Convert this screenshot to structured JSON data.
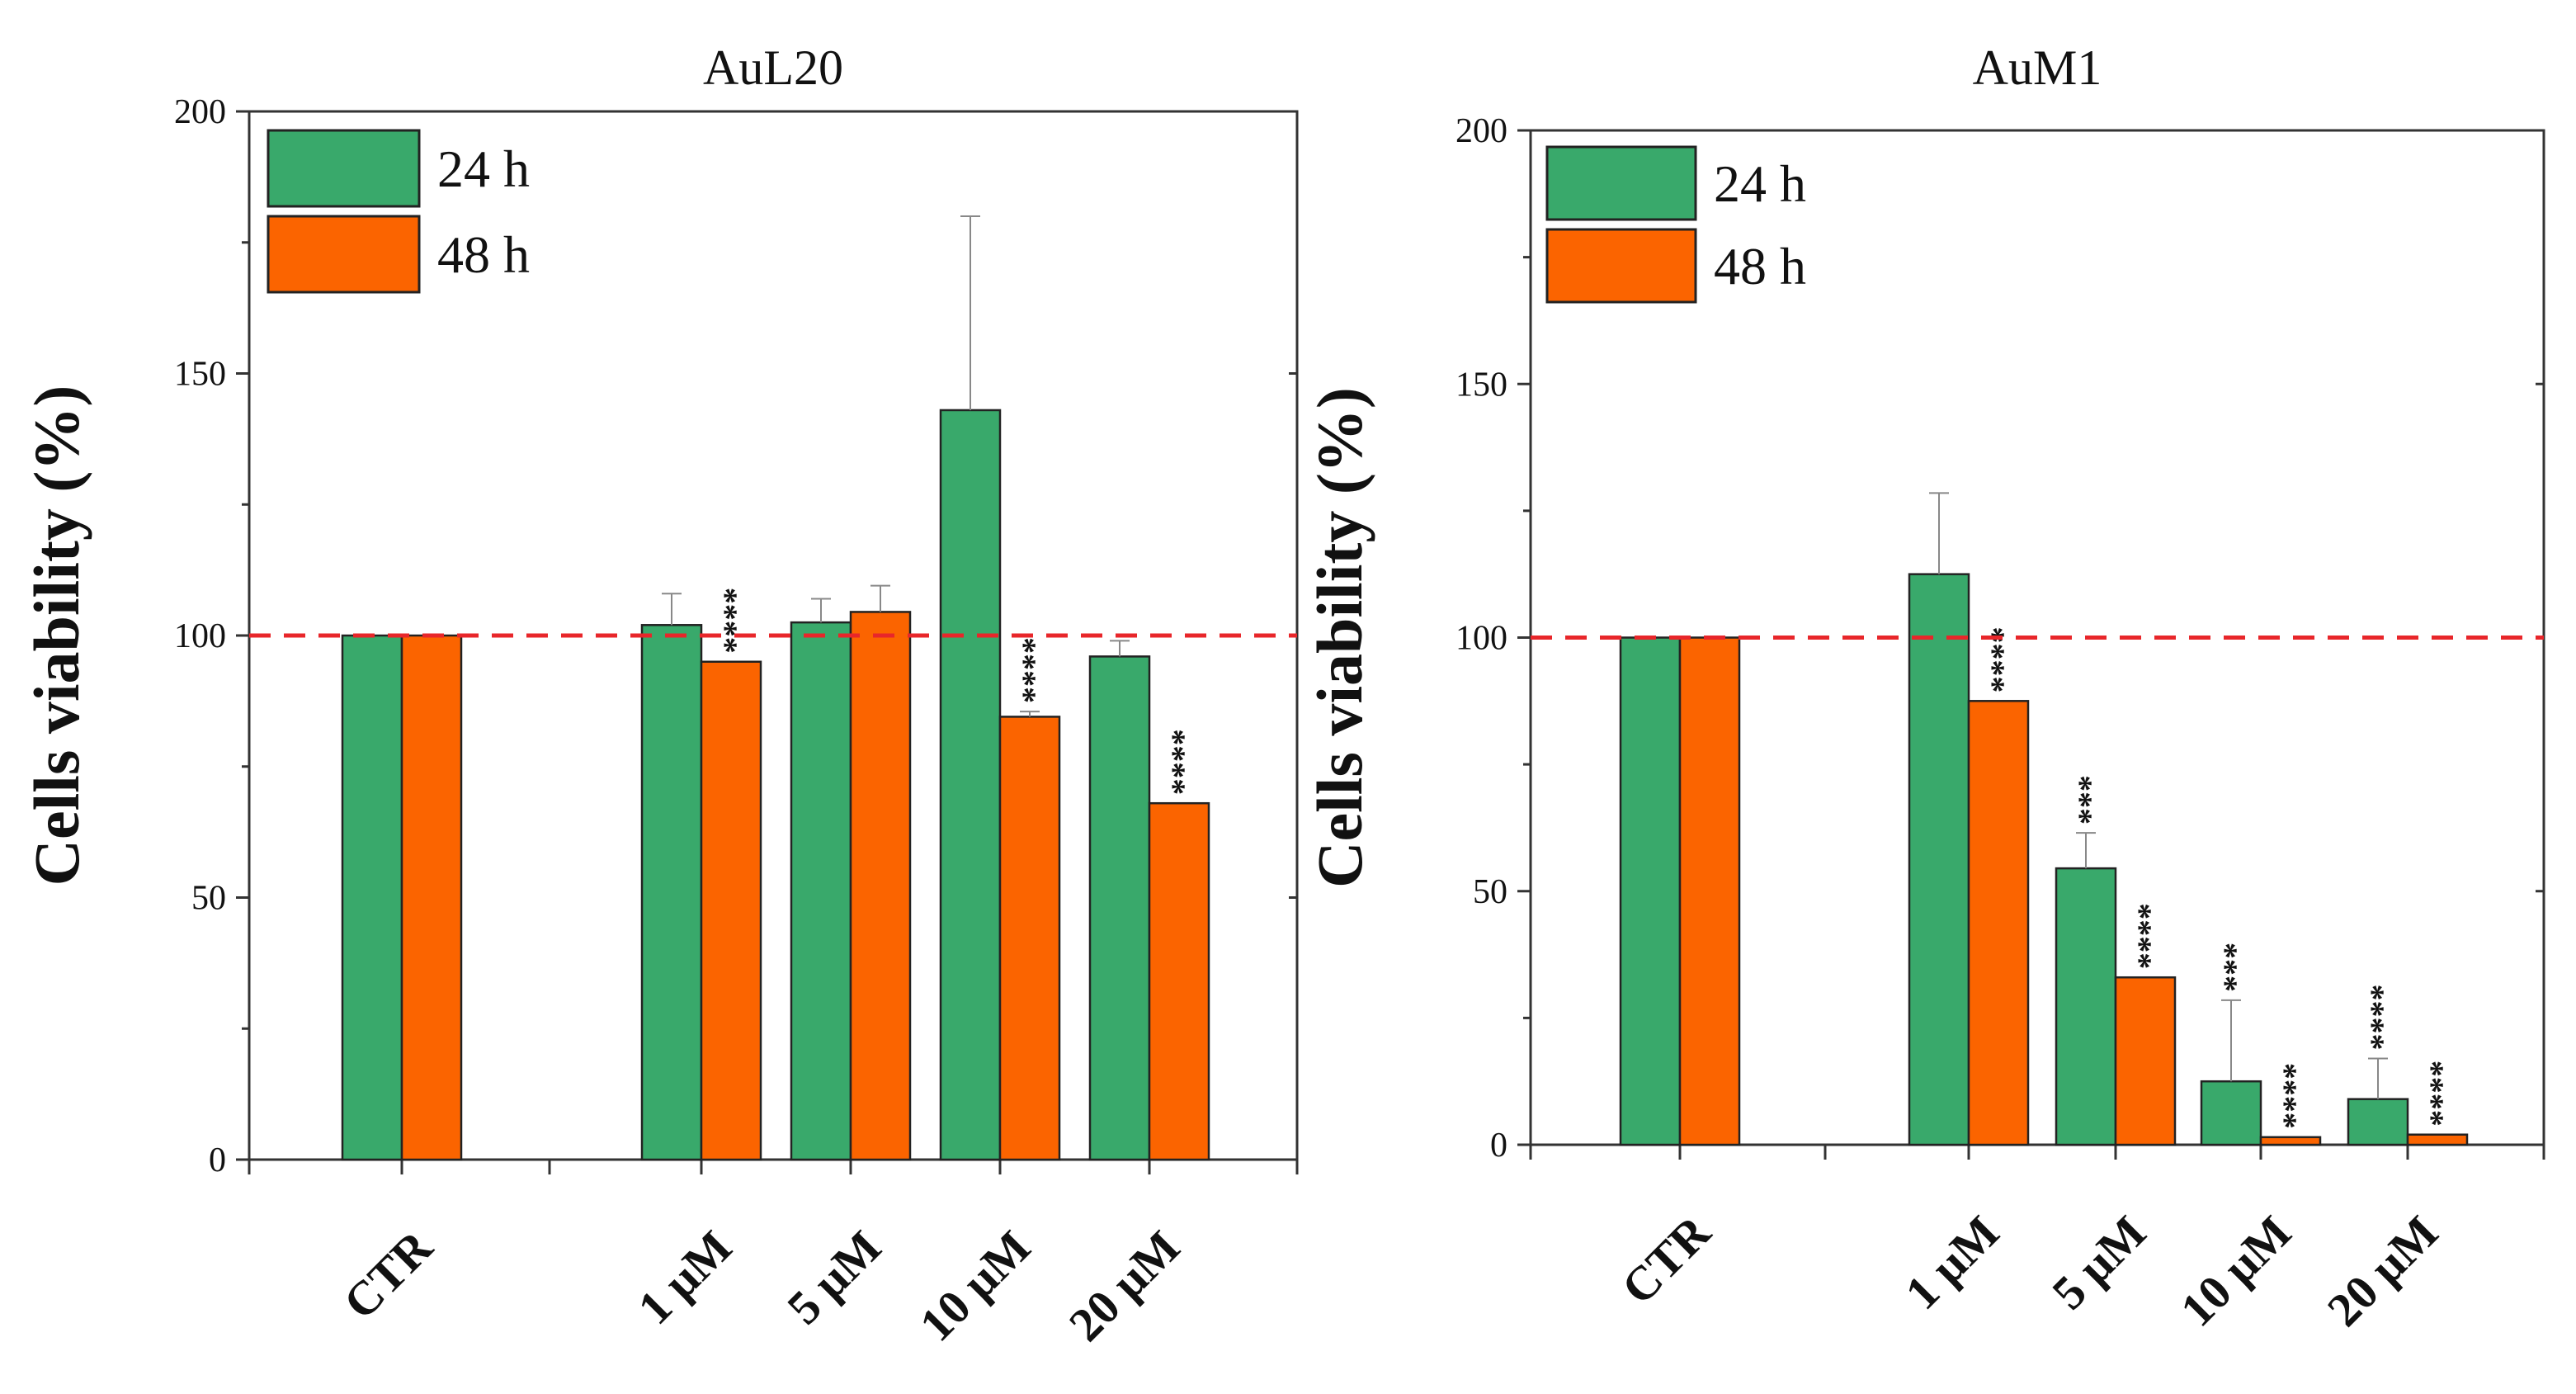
{
  "chart_data": [
    {
      "type": "bar",
      "title": "AuL20",
      "ylabel": "Cells viability (%)",
      "xlabel": "",
      "ylim": [
        0,
        200
      ],
      "yticks": [
        0,
        50,
        100,
        150,
        200
      ],
      "categories": [
        "CTR",
        "1 μM",
        "5 μM",
        "10 μM",
        "20 μM"
      ],
      "reference_line": 100,
      "series": [
        {
          "name": "24 h",
          "color": "#39a96b",
          "values": [
            100,
            102,
            102.5,
            143,
            96
          ],
          "errors": [
            0,
            6,
            4.5,
            37,
            3
          ],
          "significance": [
            "",
            "",
            "",
            "",
            ""
          ]
        },
        {
          "name": "48 h",
          "color": "#fb6400",
          "values": [
            100,
            95,
            104.5,
            84.5,
            68
          ],
          "errors": [
            0,
            0,
            5,
            1,
            0
          ],
          "significance": [
            "",
            "****",
            "",
            "****",
            "****"
          ]
        }
      ],
      "legend_position": "top-left"
    },
    {
      "type": "bar",
      "title": "AuM1",
      "ylabel": "Cells viability (%)",
      "xlabel": "",
      "ylim": [
        0,
        200
      ],
      "yticks": [
        0,
        50,
        100,
        150,
        200
      ],
      "categories": [
        "CTR",
        "1 μM",
        "5 μM",
        "10 μM",
        "20 μM"
      ],
      "reference_line": 100,
      "series": [
        {
          "name": "24 h",
          "color": "#39a96b",
          "values": [
            100,
            112.5,
            54.5,
            12.5,
            9
          ],
          "errors": [
            0,
            16,
            7,
            16,
            8
          ],
          "significance": [
            "",
            "",
            "***",
            "***",
            "****"
          ]
        },
        {
          "name": "48 h",
          "color": "#fb6400",
          "values": [
            100,
            87.5,
            33,
            1.5,
            2
          ],
          "errors": [
            0,
            0,
            0,
            0,
            0
          ],
          "significance": [
            "",
            "****",
            "****",
            "****",
            "****"
          ]
        }
      ],
      "legend_position": "top-left"
    }
  ],
  "colors": {
    "reference_line": "#e8262a",
    "axis": "#333333",
    "bar_edge": "#222222"
  }
}
